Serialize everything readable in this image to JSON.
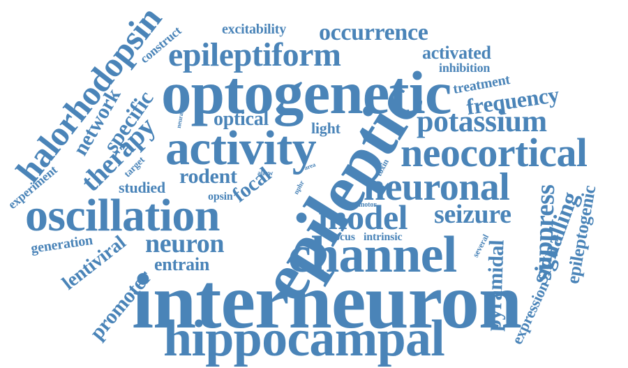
{
  "colors": {
    "word": "#4a84b8",
    "background": "#ffffff"
  },
  "words": [
    {
      "text": "interneuron"
    },
    {
      "text": "optogenetic"
    },
    {
      "text": "epileptic"
    },
    {
      "text": "hippocampal"
    },
    {
      "text": "channel"
    },
    {
      "text": "activity"
    },
    {
      "text": "oscillation"
    },
    {
      "text": "neocortical"
    },
    {
      "text": "neuronal"
    },
    {
      "text": "halorhodopsin"
    },
    {
      "text": "epileptiform"
    },
    {
      "text": "potassium"
    },
    {
      "text": "model"
    },
    {
      "text": "therapy"
    },
    {
      "text": "occurrence"
    },
    {
      "text": "seizure"
    },
    {
      "text": "suppress"
    },
    {
      "text": "neuron"
    },
    {
      "text": "frequency"
    },
    {
      "text": "signalling"
    },
    {
      "text": "specific"
    },
    {
      "text": "network"
    },
    {
      "text": "pyramidal"
    },
    {
      "text": "rodent"
    },
    {
      "text": "epileptogenic"
    },
    {
      "text": "promoter"
    },
    {
      "text": "activated"
    },
    {
      "text": "lentiviral"
    },
    {
      "text": "entrain"
    },
    {
      "text": "focal"
    },
    {
      "text": "optical"
    },
    {
      "text": "excitability"
    },
    {
      "text": "expression"
    },
    {
      "text": "generation"
    },
    {
      "text": "experiment"
    },
    {
      "text": "studied"
    },
    {
      "text": "treatment"
    },
    {
      "text": "light"
    },
    {
      "text": "inhibition"
    },
    {
      "text": "construct"
    },
    {
      "text": "intrinsic"
    },
    {
      "text": "focus"
    },
    {
      "text": "target"
    },
    {
      "text": "opsin"
    },
    {
      "text": "several"
    },
    {
      "text": "toxin"
    },
    {
      "text": "motor"
    },
    {
      "text": "neural"
    },
    {
      "text": "nphr"
    },
    {
      "text": "area"
    },
    {
      "text": "allow"
    }
  ]
}
